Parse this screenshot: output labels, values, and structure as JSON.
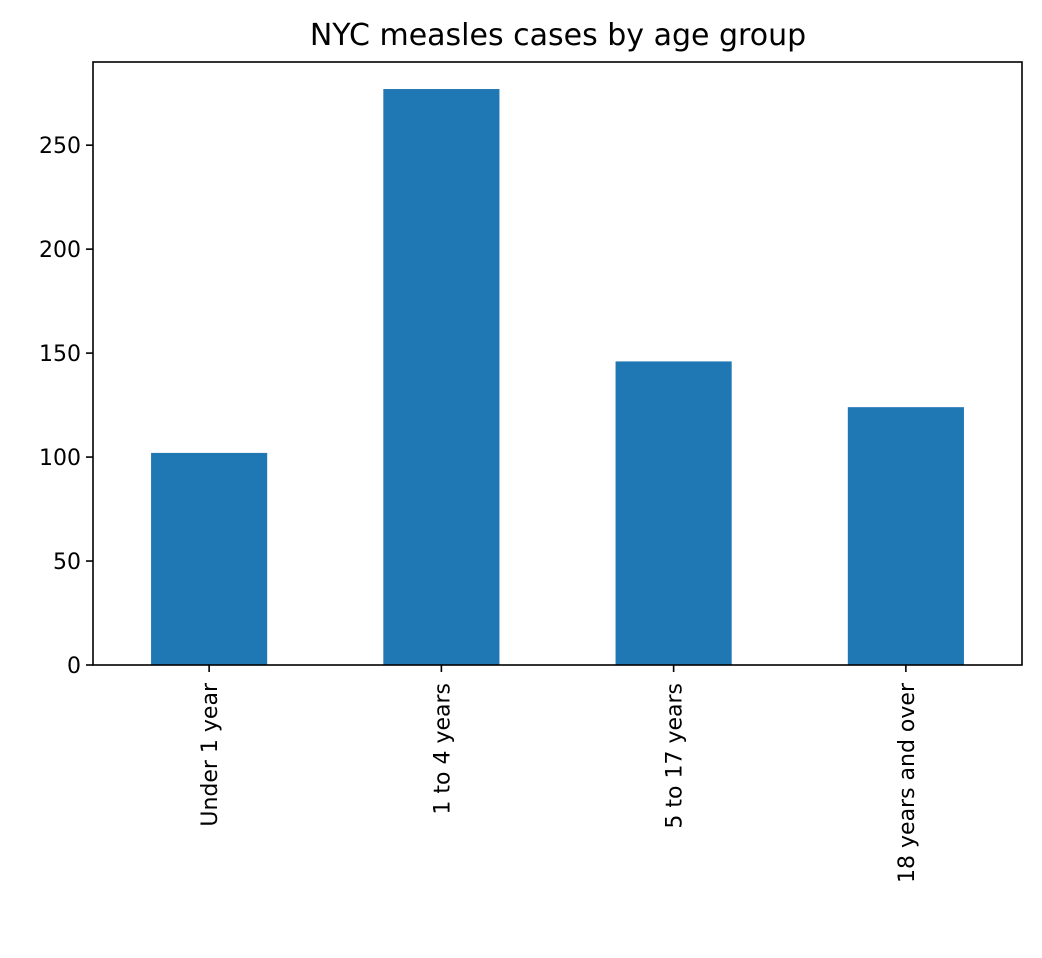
{
  "chart_data": {
    "type": "bar",
    "title": "NYC measles cases by age group",
    "xlabel": "",
    "ylabel": "",
    "categories": [
      "Under 1 year",
      "1 to 4 years",
      "5 to 17 years",
      "18 years and over"
    ],
    "values": [
      102,
      277,
      146,
      124
    ],
    "ylim": [
      0,
      290
    ],
    "yticks": [
      0,
      50,
      100,
      150,
      200,
      250
    ],
    "bar_color": "#1f77b4",
    "grid": false,
    "legend": false
  }
}
